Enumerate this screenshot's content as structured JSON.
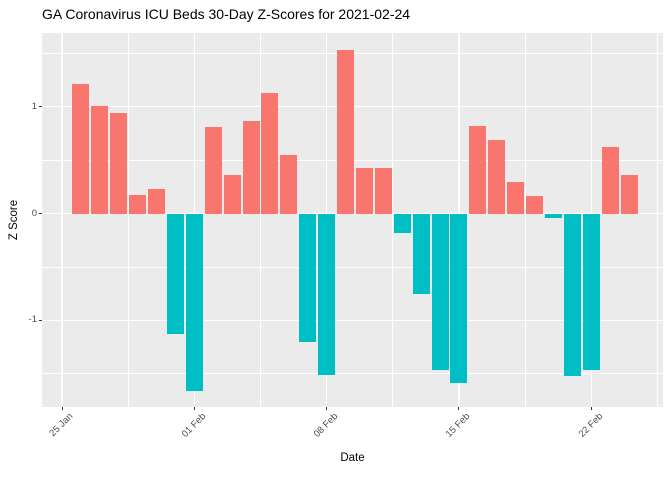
{
  "chart_data": {
    "type": "bar",
    "title": "GA Coronavirus ICU Beds 30-Day Z-Scores for 2021-02-24",
    "xlabel": "Date",
    "ylabel": "Z Score",
    "ylim": [
      -1.81,
      1.69
    ],
    "grid": true,
    "legend": "none",
    "x": [
      "26 Jan",
      "27 Jan",
      "28 Jan",
      "29 Jan",
      "30 Jan",
      "31 Jan",
      "01 Feb",
      "02 Feb",
      "03 Feb",
      "04 Feb",
      "05 Feb",
      "06 Feb",
      "07 Feb",
      "08 Feb",
      "09 Feb",
      "10 Feb",
      "11 Feb",
      "12 Feb",
      "13 Feb",
      "14 Feb",
      "15 Feb",
      "16 Feb",
      "17 Feb",
      "18 Feb",
      "19 Feb",
      "20 Feb",
      "21 Feb",
      "22 Feb",
      "23 Feb",
      "24 Feb"
    ],
    "values": [
      1.21,
      1.01,
      0.94,
      0.17,
      0.23,
      -1.13,
      -1.66,
      0.81,
      0.36,
      0.87,
      1.13,
      0.55,
      -1.2,
      -1.51,
      1.53,
      0.43,
      0.43,
      -0.18,
      -0.75,
      -1.46,
      -1.59,
      0.82,
      0.69,
      0.3,
      0.16,
      -0.04,
      -1.52,
      -1.46,
      0.62,
      0.36
    ],
    "x_ticks": [
      {
        "label": "25 Jan",
        "day": 0
      },
      {
        "label": "01 Feb",
        "day": 7
      },
      {
        "label": "08 Feb",
        "day": 14
      },
      {
        "label": "15 Feb",
        "day": 21
      },
      {
        "label": "22 Feb",
        "day": 28
      }
    ],
    "y_ticks": [
      {
        "label": "1",
        "value": 1
      },
      {
        "label": "0",
        "value": 0
      },
      {
        "label": "-1",
        "value": -1
      }
    ],
    "colors": {
      "positive": "#F8766D",
      "negative": "#00BFC4",
      "panel_bg": "#EBEBEB",
      "grid": "#FFFFFF",
      "tick_text": "#4d4d4d",
      "tick_mark": "#333333"
    }
  }
}
